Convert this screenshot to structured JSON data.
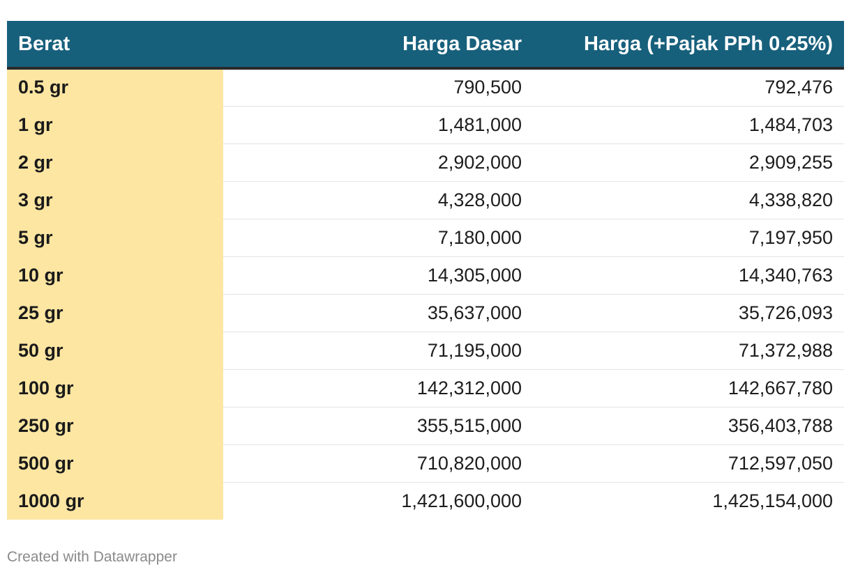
{
  "chart_data": {
    "type": "table",
    "columns": [
      "Berat",
      "Harga Dasar",
      "Harga (+Pajak PPh 0.25%)"
    ],
    "rows": [
      [
        "0.5 gr",
        "790,500",
        "792,476"
      ],
      [
        "1 gr",
        "1,481,000",
        "1,484,703"
      ],
      [
        "2 gr",
        "2,902,000",
        "2,909,255"
      ],
      [
        "3 gr",
        "4,328,000",
        "4,338,820"
      ],
      [
        "5 gr",
        "7,180,000",
        "7,197,950"
      ],
      [
        "10 gr",
        "14,305,000",
        "14,340,763"
      ],
      [
        "25 gr",
        "35,637,000",
        "35,726,093"
      ],
      [
        "50 gr",
        "71,195,000",
        "71,372,988"
      ],
      [
        "100 gr",
        "142,312,000",
        "142,667,780"
      ],
      [
        "250 gr",
        "355,515,000",
        "356,403,788"
      ],
      [
        "500 gr",
        "710,820,000",
        "712,597,050"
      ],
      [
        "1000 gr",
        "1,421,600,000",
        "1,425,154,000"
      ]
    ]
  },
  "footer": "Created with Datawrapper",
  "colors": {
    "header_bg": "#17607c",
    "highlight_column": "#fde6a2",
    "header_rule": "#2b2b2b"
  }
}
